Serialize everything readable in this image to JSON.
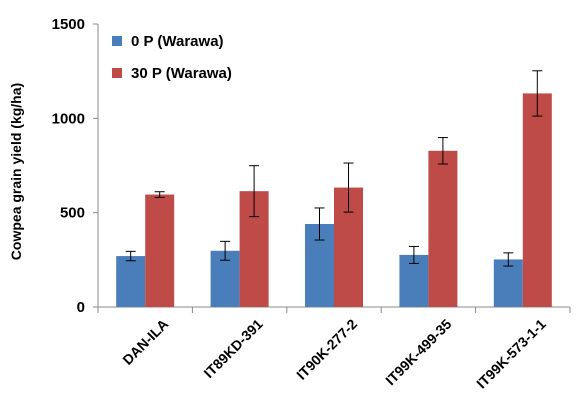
{
  "chart_data": {
    "type": "bar",
    "ylabel": "Cowpea grain yield (kg/ha)",
    "xlabel": "",
    "ylim": [
      0,
      1500
    ],
    "yticks": [
      0,
      500,
      1000,
      1500
    ],
    "grid": false,
    "legend_position": "top-left",
    "categories": [
      "DAN-ILA",
      "IT89KD-391",
      "IT90K-277-2",
      "IT99K-499-35",
      "IT99K-573-1-1"
    ],
    "series": [
      {
        "name": "0 P (Warawa)",
        "color": "#4a7ebb",
        "values": [
          270,
          298,
          440,
          276,
          252
        ],
        "errors": [
          25,
          50,
          85,
          45,
          35
        ]
      },
      {
        "name": "30 P (Warawa)",
        "color": "#be4b48",
        "values": [
          596,
          614,
          633,
          828,
          1132
        ],
        "errors": [
          15,
          135,
          130,
          70,
          120
        ]
      }
    ]
  }
}
